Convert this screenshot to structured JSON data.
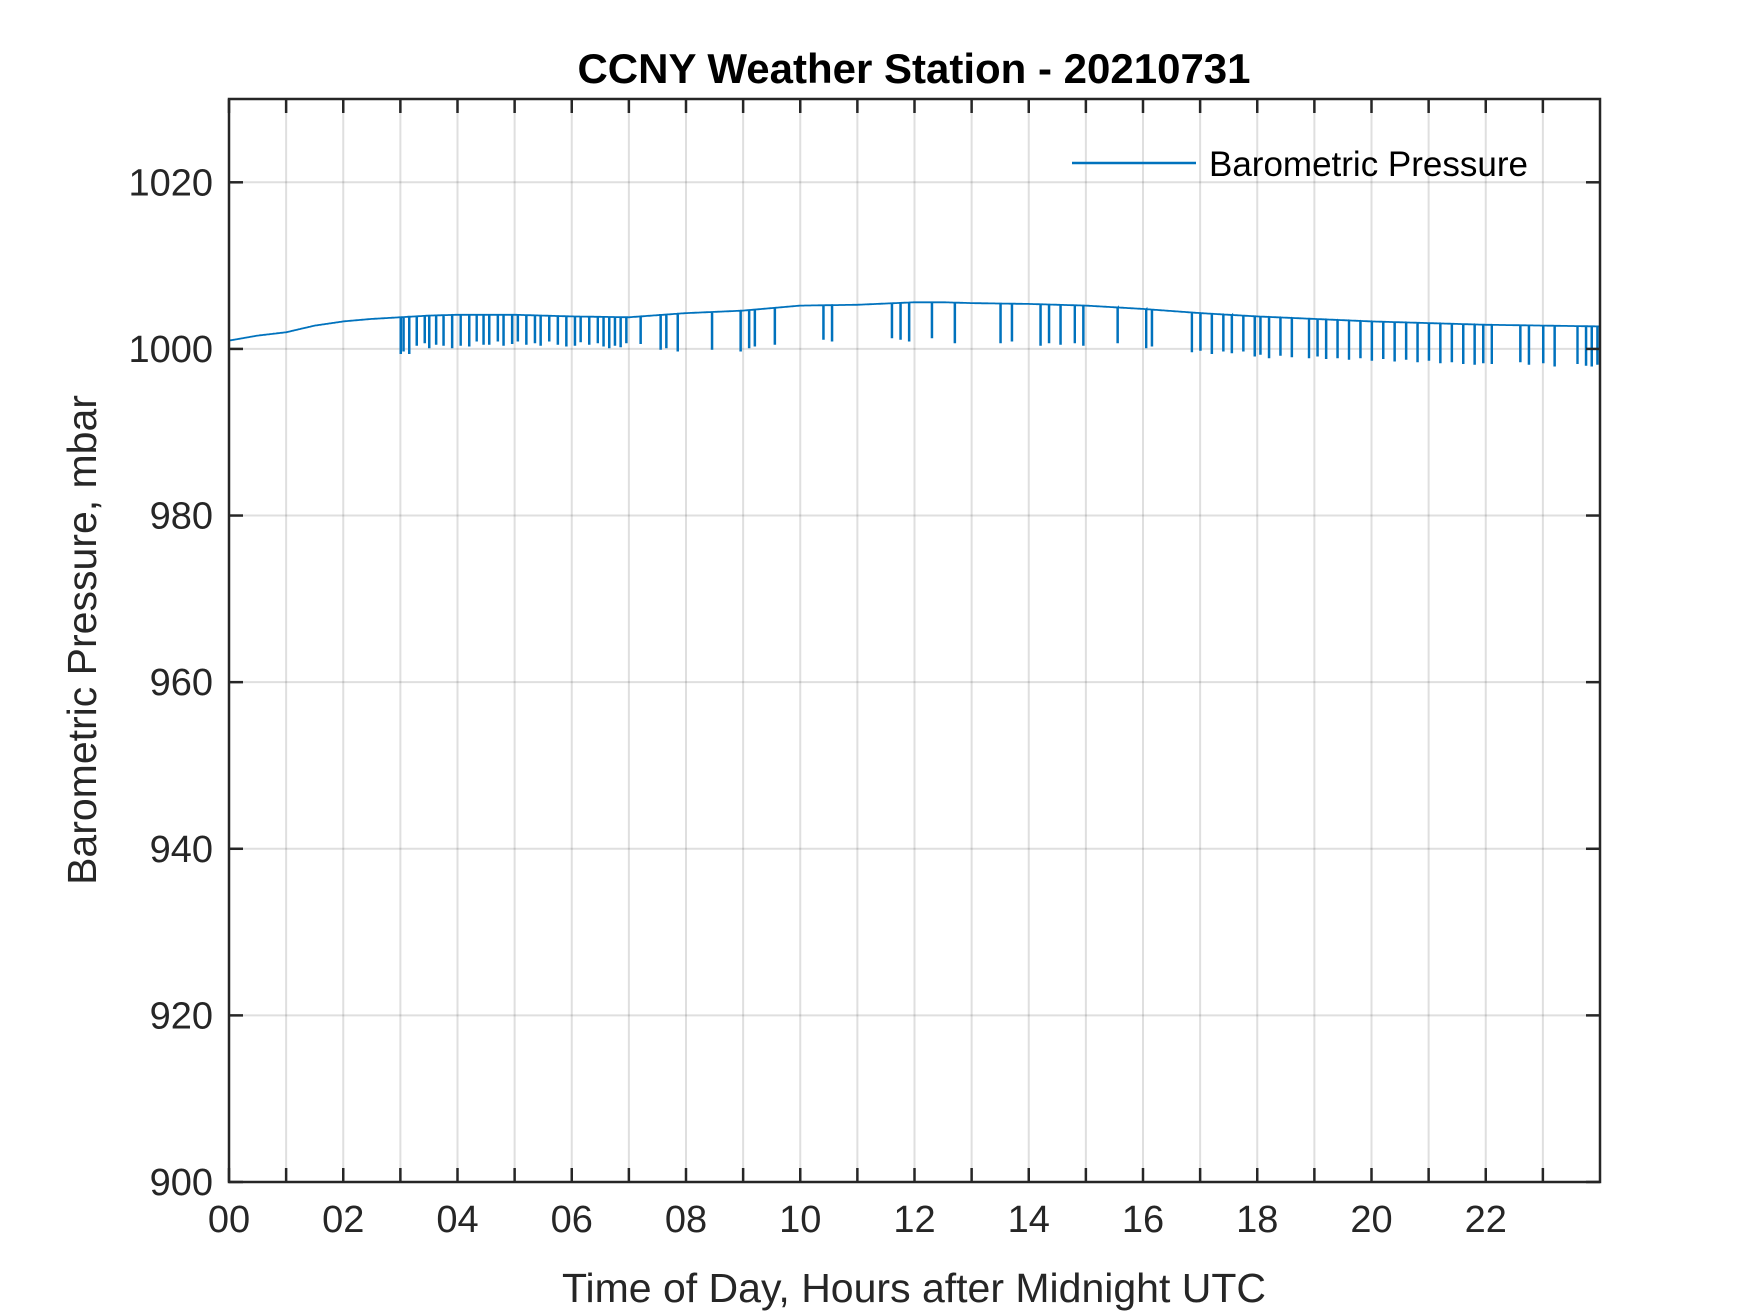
{
  "chart_data": {
    "type": "line",
    "title": "CCNY Weather Station - 20210731",
    "xlabel": "Time of Day, Hours after Midnight UTC",
    "ylabel": "Barometric Pressure, mbar",
    "xlim": [
      0,
      24
    ],
    "ylim": [
      900,
      1030
    ],
    "x_ticks": [
      0,
      2,
      4,
      6,
      8,
      10,
      12,
      14,
      16,
      18,
      20,
      22
    ],
    "x_tick_labels": [
      "00",
      "02",
      "04",
      "06",
      "08",
      "10",
      "12",
      "14",
      "16",
      "18",
      "20",
      "22"
    ],
    "x_minor_gridlines": [
      1,
      3,
      5,
      7,
      9,
      11,
      13,
      15,
      17,
      19,
      21,
      23
    ],
    "y_ticks": [
      900,
      920,
      940,
      960,
      980,
      1000,
      1020
    ],
    "y_tick_labels": [
      "900",
      "920",
      "940",
      "960",
      "980",
      "1000",
      "1020"
    ],
    "grid": true,
    "legend_position": "top-right",
    "series": [
      {
        "name": "Barometric Pressure",
        "color": "#0072BD",
        "x": [
          0,
          0.5,
          1,
          1.5,
          2,
          2.5,
          3,
          3.5,
          4,
          5,
          6,
          7,
          8,
          9,
          10,
          11,
          12,
          12.5,
          13,
          14,
          15,
          16,
          17,
          18,
          19,
          20,
          21,
          22,
          23,
          24
        ],
        "y": [
          1001.0,
          1001.6,
          1002.0,
          1002.8,
          1003.3,
          1003.6,
          1003.8,
          1004.0,
          1004.1,
          1004.1,
          1003.9,
          1003.8,
          1004.3,
          1004.6,
          1005.2,
          1005.3,
          1005.6,
          1005.6,
          1005.5,
          1005.4,
          1005.2,
          1004.8,
          1004.3,
          1003.9,
          1003.6,
          1003.3,
          1003.1,
          1002.9,
          1002.8,
          1002.7
        ],
        "dropouts": [
          {
            "x": 3.0,
            "y": 999.5
          },
          {
            "x": 3.05,
            "y": 999.8
          },
          {
            "x": 3.15,
            "y": 999.5
          },
          {
            "x": 3.28,
            "y": 1000.5
          },
          {
            "x": 3.42,
            "y": 1000.8
          },
          {
            "x": 3.5,
            "y": 1000.2
          },
          {
            "x": 3.62,
            "y": 1000.6
          },
          {
            "x": 3.75,
            "y": 1000.5
          },
          {
            "x": 3.9,
            "y": 1000.2
          },
          {
            "x": 4.05,
            "y": 1000.5
          },
          {
            "x": 4.2,
            "y": 1000.4
          },
          {
            "x": 4.33,
            "y": 1001.0
          },
          {
            "x": 4.45,
            "y": 1000.6
          },
          {
            "x": 4.55,
            "y": 1000.6
          },
          {
            "x": 4.7,
            "y": 1001.0
          },
          {
            "x": 4.8,
            "y": 1000.5
          },
          {
            "x": 4.95,
            "y": 1000.7
          },
          {
            "x": 5.05,
            "y": 1001.0
          },
          {
            "x": 5.2,
            "y": 1000.6
          },
          {
            "x": 5.35,
            "y": 1000.8
          },
          {
            "x": 5.45,
            "y": 1000.5
          },
          {
            "x": 5.6,
            "y": 1001.0
          },
          {
            "x": 5.75,
            "y": 1000.6
          },
          {
            "x": 5.9,
            "y": 1000.4
          },
          {
            "x": 6.05,
            "y": 1000.5
          },
          {
            "x": 6.15,
            "y": 1000.9
          },
          {
            "x": 6.3,
            "y": 1000.6
          },
          {
            "x": 6.45,
            "y": 1000.8
          },
          {
            "x": 6.55,
            "y": 1000.4
          },
          {
            "x": 6.65,
            "y": 1000.2
          },
          {
            "x": 6.75,
            "y": 1000.5
          },
          {
            "x": 6.85,
            "y": 1000.3
          },
          {
            "x": 6.95,
            "y": 1000.8
          },
          {
            "x": 7.2,
            "y": 1000.7
          },
          {
            "x": 7.55,
            "y": 1000.0
          },
          {
            "x": 7.65,
            "y": 1000.2
          },
          {
            "x": 7.85,
            "y": 999.8
          },
          {
            "x": 8.45,
            "y": 1000.0
          },
          {
            "x": 8.95,
            "y": 999.8
          },
          {
            "x": 9.1,
            "y": 1000.2
          },
          {
            "x": 9.2,
            "y": 1000.4
          },
          {
            "x": 9.55,
            "y": 1000.6
          },
          {
            "x": 10.4,
            "y": 1001.2
          },
          {
            "x": 10.55,
            "y": 1001.0
          },
          {
            "x": 11.6,
            "y": 1001.4
          },
          {
            "x": 11.75,
            "y": 1001.2
          },
          {
            "x": 11.9,
            "y": 1001.0
          },
          {
            "x": 12.3,
            "y": 1001.4
          },
          {
            "x": 12.7,
            "y": 1000.8
          },
          {
            "x": 13.5,
            "y": 1000.8
          },
          {
            "x": 13.7,
            "y": 1001.0
          },
          {
            "x": 14.2,
            "y": 1000.5
          },
          {
            "x": 14.35,
            "y": 1000.8
          },
          {
            "x": 14.55,
            "y": 1000.6
          },
          {
            "x": 14.8,
            "y": 1000.8
          },
          {
            "x": 14.95,
            "y": 1000.5
          },
          {
            "x": 15.55,
            "y": 1000.8
          },
          {
            "x": 16.05,
            "y": 1000.2
          },
          {
            "x": 16.15,
            "y": 1000.4
          },
          {
            "x": 16.85,
            "y": 999.7
          },
          {
            "x": 17.0,
            "y": 999.9
          },
          {
            "x": 17.2,
            "y": 999.5
          },
          {
            "x": 17.4,
            "y": 999.8
          },
          {
            "x": 17.55,
            "y": 999.6
          },
          {
            "x": 17.75,
            "y": 999.8
          },
          {
            "x": 17.95,
            "y": 999.2
          },
          {
            "x": 18.05,
            "y": 999.4
          },
          {
            "x": 18.2,
            "y": 999.0
          },
          {
            "x": 18.4,
            "y": 999.3
          },
          {
            "x": 18.6,
            "y": 999.1
          },
          {
            "x": 18.9,
            "y": 999.0
          },
          {
            "x": 19.05,
            "y": 999.2
          },
          {
            "x": 19.2,
            "y": 998.9
          },
          {
            "x": 19.4,
            "y": 999.0
          },
          {
            "x": 19.6,
            "y": 998.8
          },
          {
            "x": 19.8,
            "y": 999.0
          },
          {
            "x": 20.0,
            "y": 998.7
          },
          {
            "x": 20.2,
            "y": 998.9
          },
          {
            "x": 20.4,
            "y": 998.6
          },
          {
            "x": 20.6,
            "y": 998.8
          },
          {
            "x": 20.8,
            "y": 998.5
          },
          {
            "x": 21.0,
            "y": 998.7
          },
          {
            "x": 21.2,
            "y": 998.4
          },
          {
            "x": 21.4,
            "y": 998.5
          },
          {
            "x": 21.6,
            "y": 998.3
          },
          {
            "x": 21.8,
            "y": 998.2
          },
          {
            "x": 21.95,
            "y": 998.4
          },
          {
            "x": 22.1,
            "y": 998.3
          },
          {
            "x": 22.6,
            "y": 998.5
          },
          {
            "x": 22.75,
            "y": 998.2
          },
          {
            "x": 23.0,
            "y": 998.4
          },
          {
            "x": 23.2,
            "y": 998.0
          },
          {
            "x": 23.6,
            "y": 998.3
          },
          {
            "x": 23.75,
            "y": 998.1
          },
          {
            "x": 23.85,
            "y": 998.0
          },
          {
            "x": 23.95,
            "y": 998.2
          }
        ]
      }
    ]
  }
}
